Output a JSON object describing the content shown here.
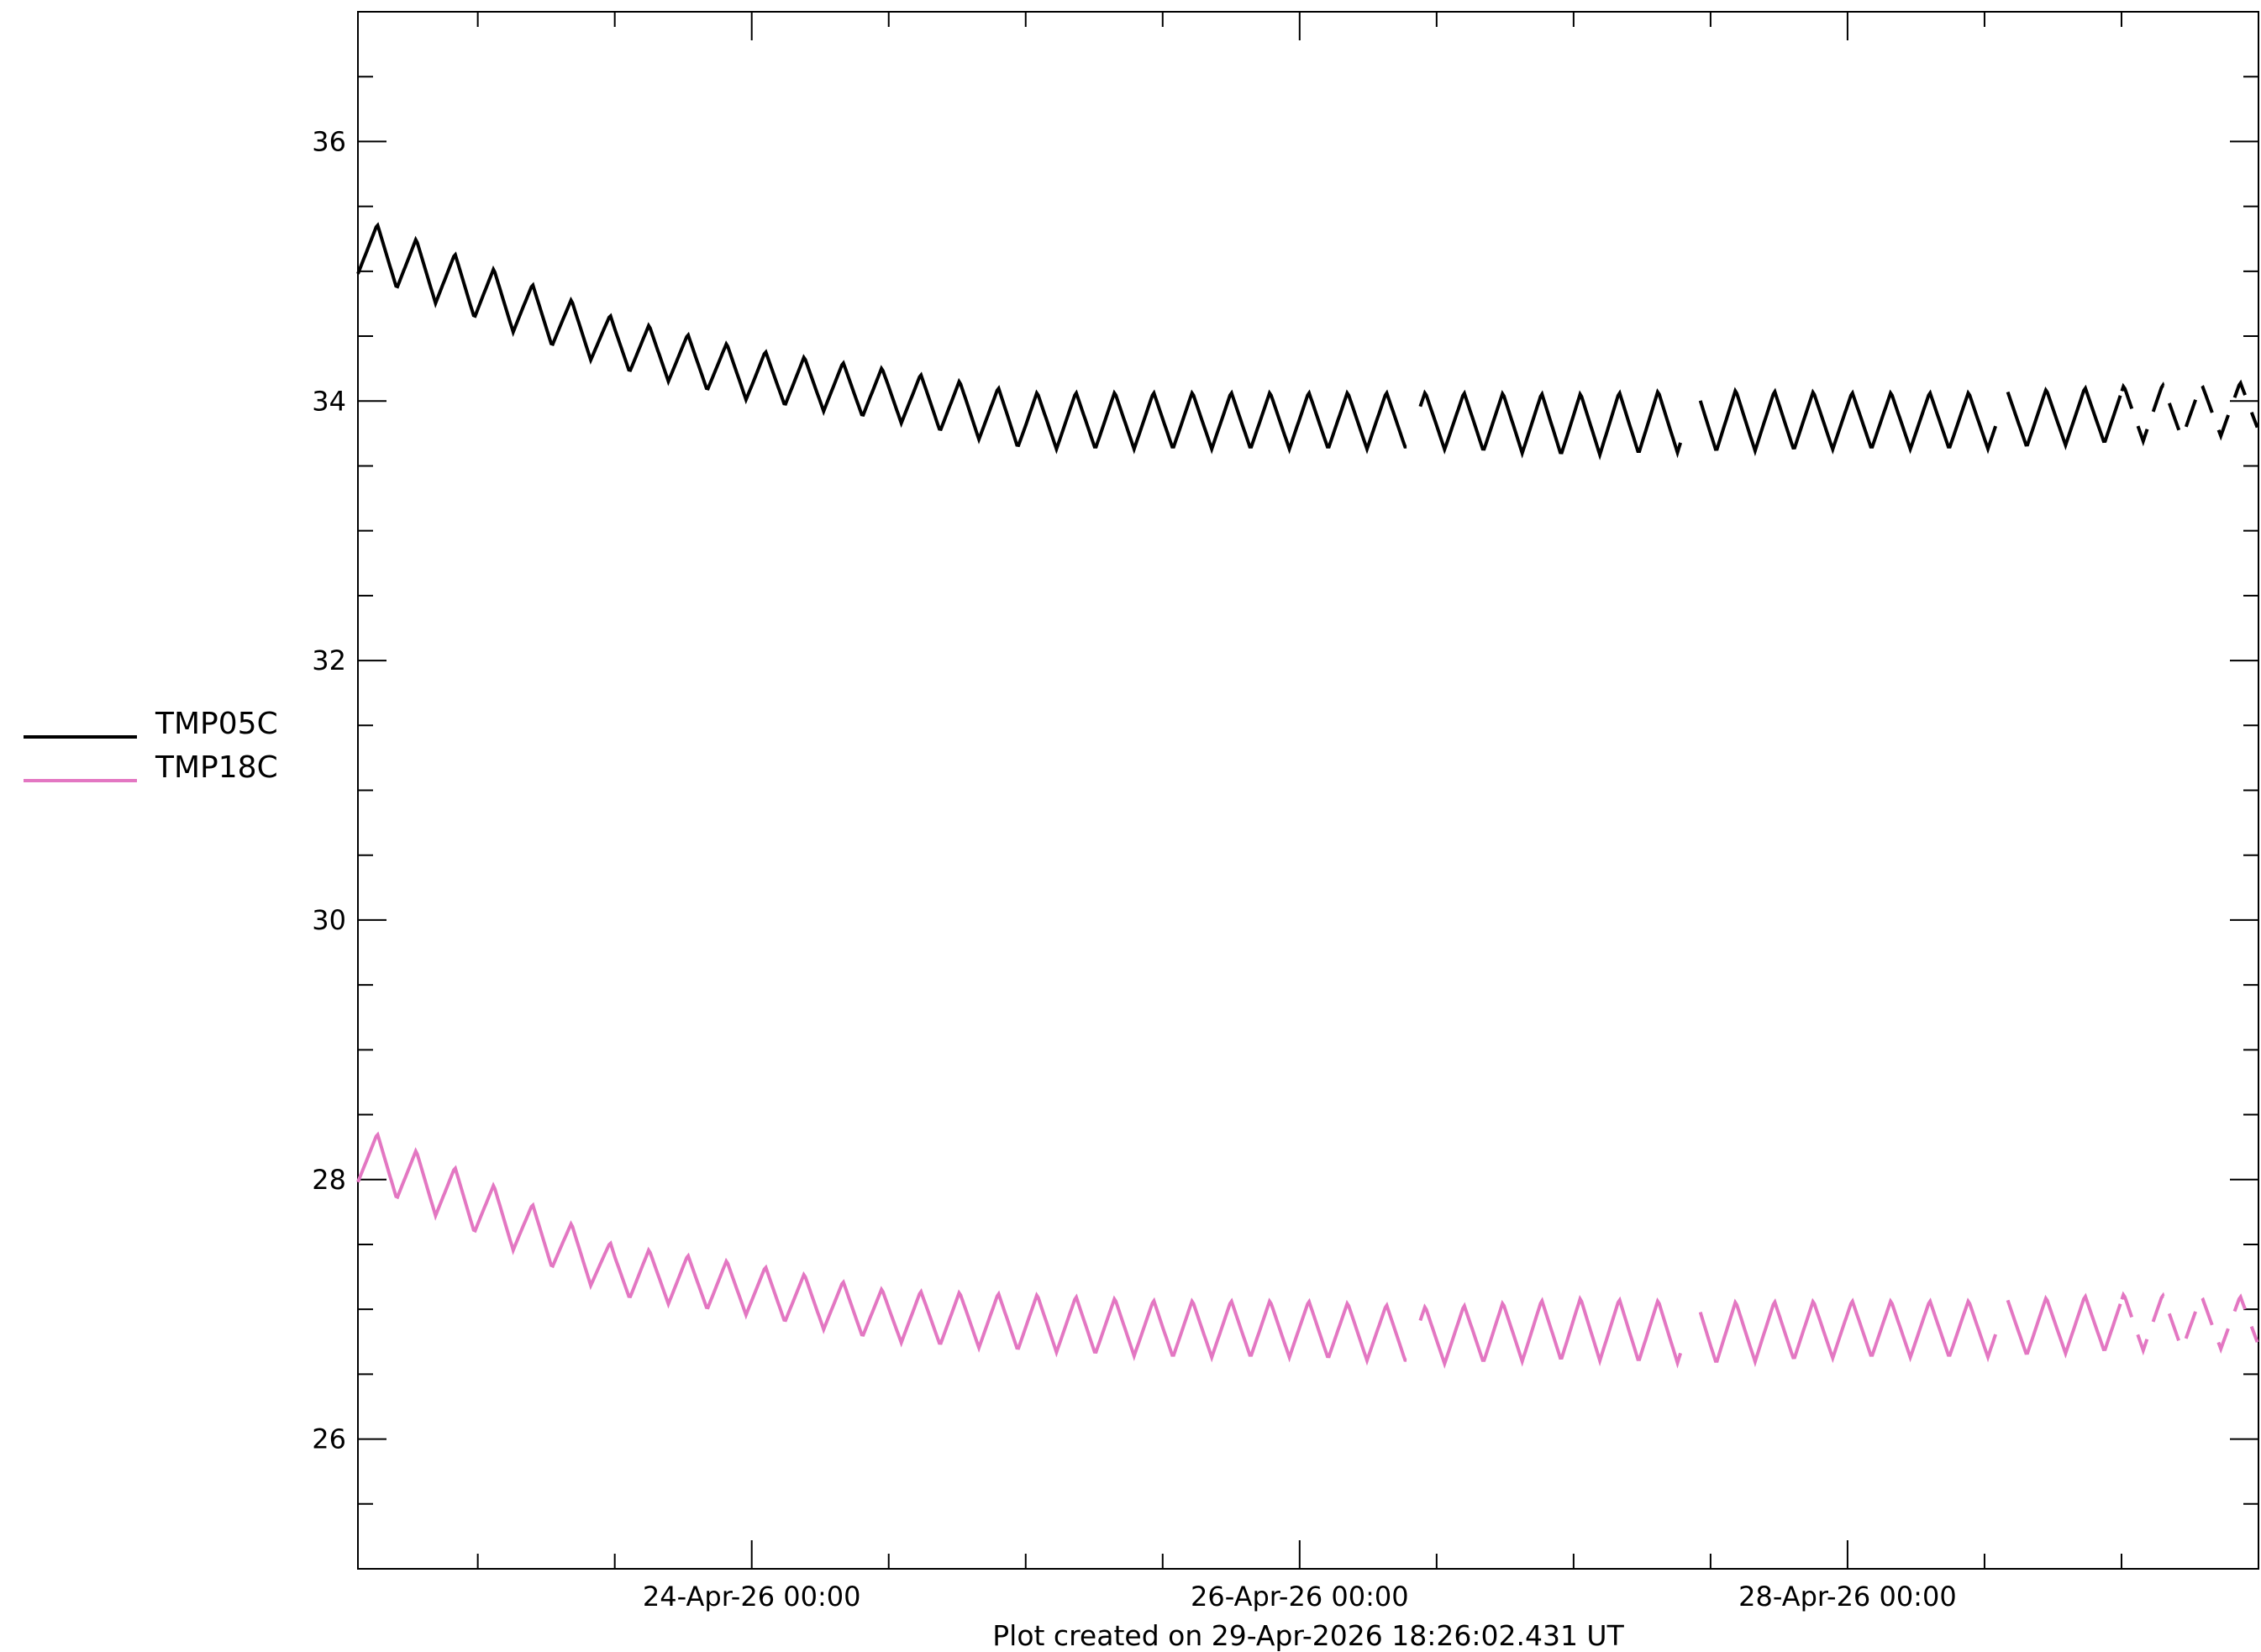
{
  "chart_data": {
    "type": "line",
    "title": "",
    "footer": "Plot created on 29-Apr-2026 18:26:02.431 UT",
    "xlabel": "",
    "ylabel": "",
    "x_range": [
      "2026-04-22T13:30",
      "2026-04-29T12:00"
    ],
    "ylim": [
      25.0,
      37.0
    ],
    "y_major_ticks": [
      26,
      28,
      30,
      32,
      34,
      36
    ],
    "y_tick_labels": [
      "26",
      "28",
      "30",
      "32",
      "34",
      "36"
    ],
    "y_minor_step": 0.5,
    "x_major_ticks": [
      "2026-04-24T00:00",
      "2026-04-26T00:00",
      "2026-04-28T00:00"
    ],
    "x_tick_labels": [
      "24-Apr-26 00:00",
      "26-Apr-26 00:00",
      "28-Apr-26 00:00"
    ],
    "x_minor_step_hours": 12,
    "grid": false,
    "legend_position": "left",
    "series": [
      {
        "name": "TMP05C",
        "color": "#000000",
        "baseline_x": [
          "2026-04-22T13:30",
          "2026-04-23T00:00",
          "2026-04-23T12:00",
          "2026-04-24T00:00",
          "2026-04-24T12:00",
          "2026-04-25T00:00",
          "2026-04-25T12:00",
          "2026-04-26T00:00",
          "2026-04-26T12:00",
          "2026-04-27T00:00",
          "2026-04-27T12:00",
          "2026-04-28T00:00",
          "2026-04-28T12:00",
          "2026-04-29T00:00",
          "2026-04-29T12:00"
        ],
        "baseline_y": [
          35.2,
          34.85,
          34.45,
          34.2,
          34.05,
          33.85,
          33.85,
          33.85,
          33.85,
          33.82,
          33.85,
          33.85,
          33.85,
          33.9,
          33.95
        ],
        "oscillation_amplitude": [
          0.22,
          0.22,
          0.2,
          0.2,
          0.2,
          0.22,
          0.22,
          0.22,
          0.22,
          0.24,
          0.24,
          0.22,
          0.22,
          0.22,
          0.2
        ],
        "oscillation_period_hours": 3.4,
        "gaps": [
          [
            "2026-04-26T09:30",
            "2026-04-26T10:30"
          ],
          [
            "2026-04-27T09:30",
            "2026-04-27T11:00"
          ],
          [
            "2026-04-28T13:00",
            "2026-04-28T14:00"
          ],
          [
            "2026-04-29T00:00",
            "2026-04-29T12:00",
            "dashed"
          ]
        ]
      },
      {
        "name": "TMP18C",
        "color": "#e377c2",
        "baseline_x": [
          "2026-04-22T13:30",
          "2026-04-23T00:00",
          "2026-04-23T12:00",
          "2026-04-24T00:00",
          "2026-04-24T12:00",
          "2026-04-25T00:00",
          "2026-04-25T12:00",
          "2026-04-26T00:00",
          "2026-04-26T12:00",
          "2026-04-27T00:00",
          "2026-04-27T12:00",
          "2026-04-28T00:00",
          "2026-04-28T12:00",
          "2026-04-29T00:00",
          "2026-04-29T12:00"
        ],
        "baseline_y": [
          28.2,
          27.8,
          27.3,
          27.15,
          26.95,
          26.9,
          26.85,
          26.85,
          26.8,
          26.85,
          26.82,
          26.85,
          26.85,
          26.9,
          26.9
        ],
        "oscillation_amplitude": [
          0.22,
          0.22,
          0.2,
          0.2,
          0.2,
          0.22,
          0.22,
          0.22,
          0.22,
          0.24,
          0.24,
          0.22,
          0.22,
          0.22,
          0.2
        ],
        "oscillation_period_hours": 3.4,
        "gaps": [
          [
            "2026-04-26T09:30",
            "2026-04-26T10:30"
          ],
          [
            "2026-04-27T09:30",
            "2026-04-27T11:00"
          ],
          [
            "2026-04-28T13:00",
            "2026-04-28T14:00"
          ],
          [
            "2026-04-29T00:00",
            "2026-04-29T12:00",
            "dashed"
          ]
        ]
      }
    ]
  }
}
